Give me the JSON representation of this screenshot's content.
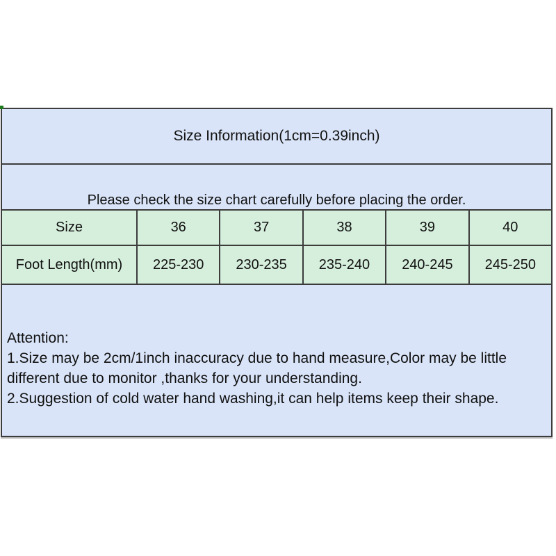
{
  "chart_data": {
    "type": "table",
    "title": "Size Information(1cm=0.39inch)",
    "notice": "Please check the size chart carefully before placing the order.",
    "columns": [
      "Size",
      "36",
      "37",
      "38",
      "39",
      "40"
    ],
    "rows": [
      [
        "Foot Length(mm)",
        "225-230",
        "230-235",
        "235-240",
        "240-245",
        "245-250"
      ]
    ],
    "attention": {
      "lines": [
        "Attention:",
        "1.Size may be 2cm/1inch inaccuracy due to hand measure,Color may be little",
        "different due to monitor ,thanks for your understanding.",
        "2.Suggestion of cold water hand washing,it can help items keep their shape."
      ]
    },
    "layout_hints": {
      "legend": "none",
      "grid": "on",
      "header_fill": "#d9e4f8",
      "data_row_fill": "#d6efdc"
    }
  },
  "colors": {
    "blue_background": "#d9e4f8",
    "green_background": "#d6efdc",
    "border": "#3c3c3c",
    "text": "#111111",
    "corner_artifact": "#1c7a1c"
  }
}
